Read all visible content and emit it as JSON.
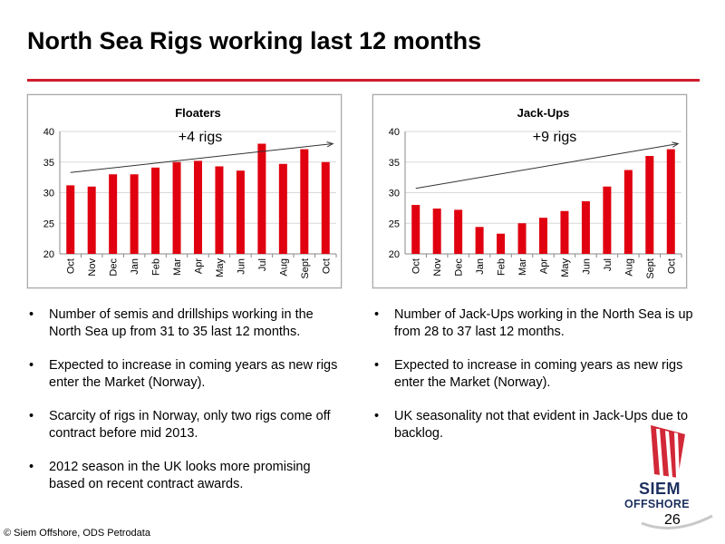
{
  "title": "North Sea Rigs working last 12 months",
  "colors": {
    "accent": "#d01c2c",
    "bar": "#e0000f",
    "brand_navy": "#1c2f5e"
  },
  "chart_data": [
    {
      "type": "bar",
      "title": "Floaters",
      "categories": [
        "Oct",
        "Nov",
        "Dec",
        "Jan",
        "Feb",
        "Mar",
        "Apr",
        "May",
        "Jun",
        "Jul",
        "Aug",
        "Sept",
        "Oct"
      ],
      "values": [
        31.2,
        31,
        33,
        33,
        34.1,
        35,
        35.2,
        34.3,
        33.6,
        38,
        34.7,
        37.1,
        35
      ],
      "ylim": [
        20,
        40
      ],
      "yticks": [
        "20",
        "25",
        "30",
        "35",
        "40"
      ],
      "annotation": "+4 rigs",
      "trend": [
        33.3,
        38
      ],
      "grid": true,
      "legend": "none"
    },
    {
      "type": "bar",
      "title": "Jack-Ups",
      "categories": [
        "Oct",
        "Nov",
        "Dec",
        "Jan",
        "Feb",
        "Mar",
        "Apr",
        "May",
        "Jun",
        "Jul",
        "Aug",
        "Sept",
        "Oct"
      ],
      "values": [
        28,
        27.4,
        27.2,
        24.4,
        23.3,
        25,
        25.9,
        27,
        28.6,
        31,
        33.7,
        36,
        37.1
      ],
      "ylim": [
        20,
        40
      ],
      "yticks": [
        "20",
        "25",
        "30",
        "35",
        "40"
      ],
      "annotation": "+9 rigs",
      "trend": [
        30.7,
        38
      ],
      "grid": true,
      "legend": "none"
    }
  ],
  "left_bullets": [
    "Number of semis and drillships working in the North Sea up from 31 to 35 last 12 months.",
    "Expected to increase in coming years as new rigs enter the Market (Norway).",
    "Scarcity of rigs in Norway, only two rigs come off contract before mid 2013.",
    "2012 season in the UK looks more promising based on recent contract awards."
  ],
  "right_bullets": [
    "Number of Jack-Ups working in the North Sea is up from 28 to 37 last 12 months.",
    "Expected to increase in coming years as new rigs enter the Market (Norway).",
    "UK seasonality not that evident in Jack-Ups due to backlog."
  ],
  "bullet_char": "•",
  "footer": "© Siem Offshore, ODS Petrodata",
  "page_number": "26",
  "logo": {
    "line1": "SIEM",
    "line2": "OFFSHORE",
    "icon": "viking-sail-icon"
  }
}
